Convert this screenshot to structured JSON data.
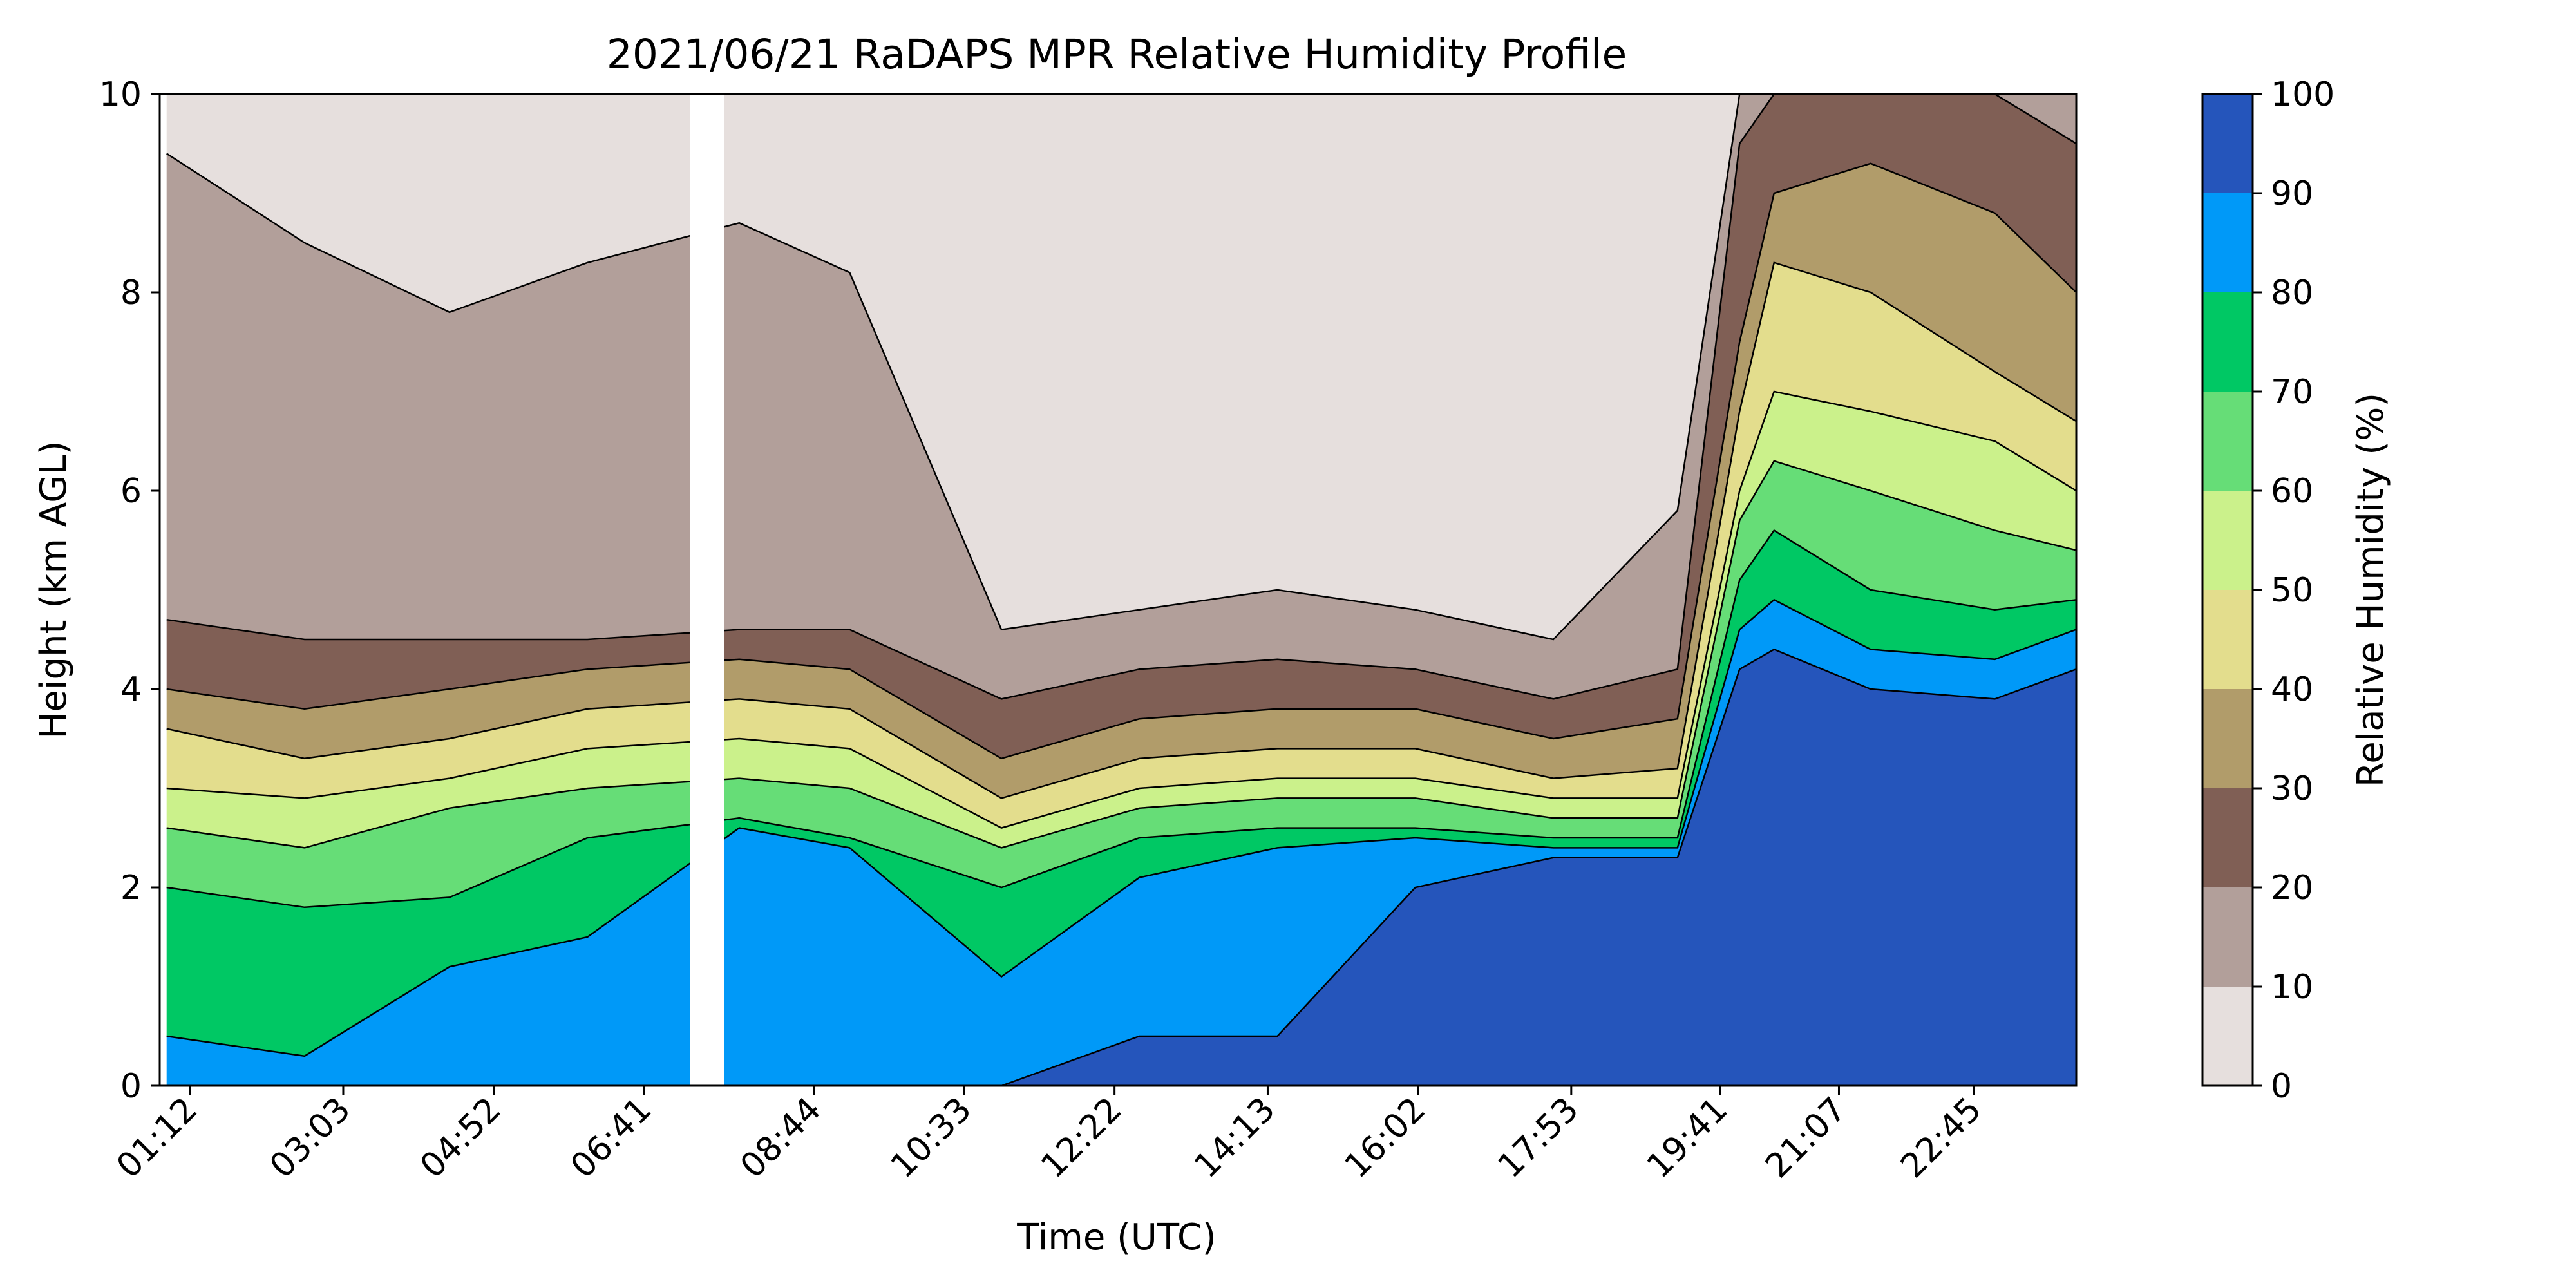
{
  "chart_data": {
    "type": "heatmap",
    "title": "2021/06/21 RaDAPS MPR Relative Humidity Profile",
    "xlabel": "Time (UTC)",
    "ylabel": "Height (km AGL)",
    "x_tick_labels": [
      "01:12",
      "03:03",
      "04:52",
      "06:41",
      "08:44",
      "10:33",
      "12:22",
      "14:13",
      "16:02",
      "17:53",
      "19:41",
      "21:07",
      "22:45"
    ],
    "y_ticks": [
      0,
      2,
      4,
      6,
      8,
      10
    ],
    "ylim": [
      0,
      10
    ],
    "colorbar": {
      "label": "Relative Humidity (%)",
      "ticks": [
        0,
        10,
        20,
        30,
        40,
        50,
        60,
        70,
        80,
        90,
        100
      ],
      "levels": [
        {
          "range": [
            0,
            10
          ],
          "color": "#e6dfdd"
        },
        {
          "range": [
            10,
            20
          ],
          "color": "#b29f9a"
        },
        {
          "range": [
            20,
            30
          ],
          "color": "#805f55"
        },
        {
          "range": [
            30,
            40
          ],
          "color": "#b19c6a"
        },
        {
          "range": [
            40,
            50
          ],
          "color": "#e3dd8d"
        },
        {
          "range": [
            50,
            60
          ],
          "color": "#cbf18b"
        },
        {
          "range": [
            60,
            70
          ],
          "color": "#66dd77"
        },
        {
          "range": [
            70,
            80
          ],
          "color": "#00c864"
        },
        {
          "range": [
            80,
            90
          ],
          "color": "#0099f8"
        },
        {
          "range": [
            90,
            100
          ],
          "color": "#2555bb"
        }
      ]
    },
    "contour_boundaries_km": {
      "columns_utc": [
        "00:55",
        "02:35",
        "04:20",
        "06:00",
        "07:50",
        "09:10",
        "11:00",
        "12:40",
        "14:20",
        "16:00",
        "17:40",
        "19:10",
        "19:55",
        "20:20",
        "21:30",
        "23:00",
        "23:59"
      ],
      "rh_10": [
        9.4,
        8.5,
        7.8,
        8.3,
        8.7,
        8.2,
        4.6,
        4.8,
        5.0,
        4.8,
        4.5,
        5.8,
        10.0,
        10.0,
        10.0,
        10.0,
        10.0
      ],
      "rh_20": [
        4.7,
        4.5,
        4.5,
        4.5,
        4.6,
        4.6,
        3.9,
        4.2,
        4.3,
        4.2,
        3.9,
        4.2,
        9.5,
        10.0,
        10.0,
        10.0,
        9.5
      ],
      "rh_30": [
        4.0,
        3.8,
        4.0,
        4.2,
        4.3,
        4.2,
        3.3,
        3.7,
        3.8,
        3.8,
        3.5,
        3.7,
        7.5,
        9.0,
        9.3,
        8.8,
        8.0
      ],
      "rh_40": [
        3.6,
        3.3,
        3.5,
        3.8,
        3.9,
        3.8,
        2.9,
        3.3,
        3.4,
        3.4,
        3.1,
        3.2,
        6.8,
        8.3,
        8.0,
        7.2,
        6.7
      ],
      "rh_50": [
        3.0,
        2.9,
        3.1,
        3.4,
        3.5,
        3.4,
        2.6,
        3.0,
        3.1,
        3.1,
        2.9,
        2.9,
        6.0,
        7.0,
        6.8,
        6.5,
        6.0
      ],
      "rh_60": [
        2.6,
        2.4,
        2.8,
        3.0,
        3.1,
        3.0,
        2.4,
        2.8,
        2.9,
        2.9,
        2.7,
        2.7,
        5.7,
        6.3,
        6.0,
        5.6,
        5.4
      ],
      "rh_70": [
        2.0,
        1.8,
        1.9,
        2.5,
        2.7,
        2.5,
        2.0,
        2.5,
        2.6,
        2.6,
        2.5,
        2.5,
        5.1,
        5.6,
        5.0,
        4.8,
        4.9
      ],
      "rh_80": [
        0.5,
        0.3,
        1.2,
        1.5,
        2.6,
        2.4,
        1.1,
        2.1,
        2.4,
        2.5,
        2.4,
        2.4,
        4.6,
        4.9,
        4.4,
        4.3,
        4.6
      ],
      "rh_90": [
        0.0,
        0.0,
        0.0,
        0.0,
        0.0,
        0.0,
        0.0,
        0.5,
        0.5,
        2.0,
        2.3,
        2.3,
        4.2,
        4.4,
        4.0,
        3.9,
        4.2
      ]
    }
  }
}
